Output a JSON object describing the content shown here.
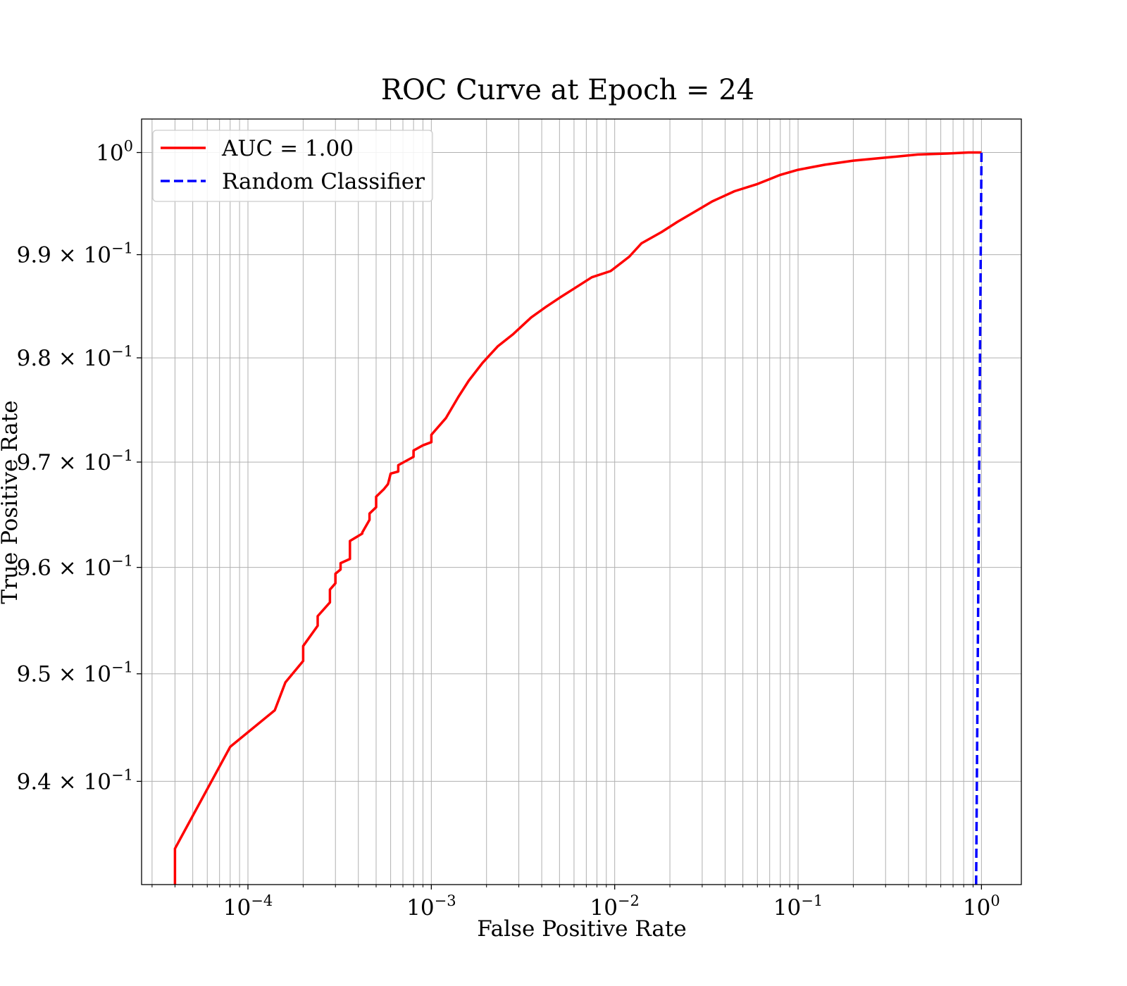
{
  "chart_data": {
    "type": "line",
    "title": "ROC Curve at Epoch = 24",
    "xlabel": "False Positive Rate",
    "ylabel": "True Positive Rate",
    "xscale": "log",
    "yscale": "log",
    "xlim": [
      2.63e-05,
      1.65
    ],
    "ylim": [
      0.9305,
      1.0033
    ],
    "grid": true,
    "grid_which": "both",
    "legend_position": "upper-left",
    "x_ticks": [
      {
        "value": 0.0001,
        "base": "10",
        "exp": "−4"
      },
      {
        "value": 0.001,
        "base": "10",
        "exp": "−3"
      },
      {
        "value": 0.01,
        "base": "10",
        "exp": "−2"
      },
      {
        "value": 0.1,
        "base": "10",
        "exp": "−1"
      },
      {
        "value": 1,
        "base": "10",
        "exp": "0"
      }
    ],
    "y_ticks": [
      {
        "value": 1.0,
        "base": "10",
        "exp": "0"
      },
      {
        "value": 0.99,
        "base": "9.9 × 10",
        "exp": "−1"
      },
      {
        "value": 0.98,
        "base": "9.8 × 10",
        "exp": "−1"
      },
      {
        "value": 0.97,
        "base": "9.7 × 10",
        "exp": "−1"
      },
      {
        "value": 0.96,
        "base": "9.6 × 10",
        "exp": "−1"
      },
      {
        "value": 0.95,
        "base": "9.5 × 10",
        "exp": "−1"
      },
      {
        "value": 0.94,
        "base": "9.4 × 10",
        "exp": "−1"
      }
    ],
    "series": [
      {
        "name": "AUC = 1.00",
        "color": "#ff0000",
        "style": "solid",
        "x": [
          4e-05,
          4e-05,
          8e-05,
          0.00014,
          0.00016,
          0.0002,
          0.0002,
          0.00024,
          0.00024,
          0.00028,
          0.00028,
          0.0003,
          0.0003,
          0.00032,
          0.00032,
          0.00036,
          0.00036,
          0.00042,
          0.00042,
          0.00046,
          0.00046,
          0.0005,
          0.0005,
          0.00055,
          0.00058,
          0.0006,
          0.00066,
          0.00066,
          0.0008,
          0.0008,
          0.0009,
          0.001,
          0.001,
          0.0012,
          0.0014,
          0.0016,
          0.0019,
          0.0023,
          0.0028,
          0.0035,
          0.0042,
          0.005,
          0.006,
          0.0075,
          0.0095,
          0.012,
          0.014,
          0.018,
          0.022,
          0.028,
          0.034,
          0.045,
          0.06,
          0.08,
          0.1,
          0.14,
          0.2,
          0.3,
          0.45,
          0.65,
          0.85,
          1.0
        ],
        "y": [
          0.9305,
          0.9338,
          0.9432,
          0.9466,
          0.9492,
          0.9512,
          0.9526,
          0.9545,
          0.9554,
          0.9567,
          0.9579,
          0.9585,
          0.9594,
          0.9598,
          0.9604,
          0.9608,
          0.9625,
          0.9632,
          0.9633,
          0.9645,
          0.9651,
          0.9657,
          0.9667,
          0.9674,
          0.9679,
          0.9689,
          0.9691,
          0.9697,
          0.9705,
          0.9711,
          0.9716,
          0.9719,
          0.9726,
          0.9742,
          0.9762,
          0.9778,
          0.9795,
          0.9811,
          0.9823,
          0.9839,
          0.9849,
          0.9858,
          0.9867,
          0.9878,
          0.9884,
          0.9898,
          0.9911,
          0.9922,
          0.9932,
          0.9943,
          0.9952,
          0.9962,
          0.9969,
          0.9978,
          0.9983,
          0.9988,
          0.9992,
          0.9995,
          0.9998,
          0.9999,
          1.0,
          1.0
        ]
      },
      {
        "name": "Random Classifier",
        "color": "#0000ff",
        "style": "dashed",
        "x": [
          0.935,
          1.0
        ],
        "y": [
          0.9305,
          1.0
        ]
      }
    ]
  }
}
